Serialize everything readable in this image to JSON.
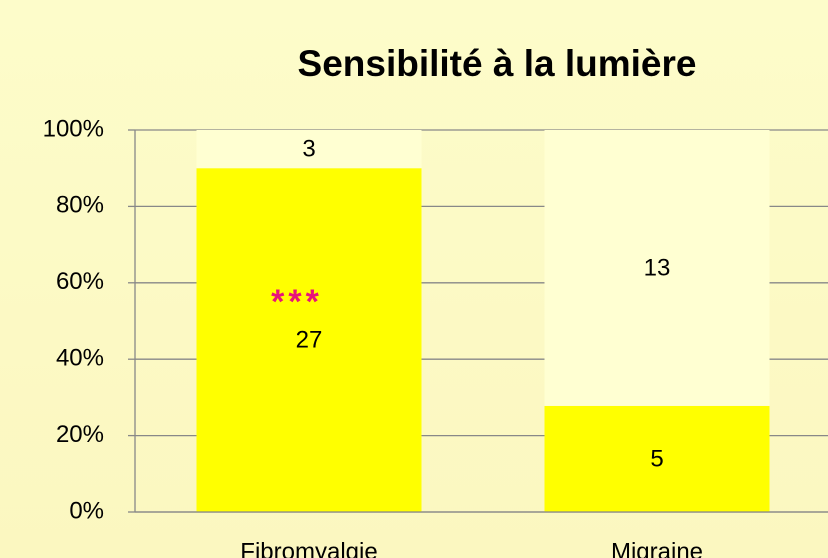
{
  "chart_data": {
    "type": "bar",
    "stacking": "percent",
    "title": "Sensibilité à la lumière",
    "annotation": "***",
    "categories": [
      "Fibromyalgie",
      "Migraine"
    ],
    "series": [
      {
        "color": "#ffff00",
        "values": [
          27,
          5
        ]
      },
      {
        "color": "#ffffd2",
        "values": [
          3,
          13
        ]
      }
    ],
    "ylim": [
      0,
      100
    ],
    "yticks": [
      {
        "value": 0,
        "label": "0%"
      },
      {
        "value": 20,
        "label": "20%"
      },
      {
        "value": 40,
        "label": "40%"
      },
      {
        "value": 60,
        "label": "60%"
      },
      {
        "value": 80,
        "label": "80%"
      },
      {
        "value": 100,
        "label": "100%"
      }
    ],
    "grid": true,
    "annotation_color": "#e8147a"
  }
}
